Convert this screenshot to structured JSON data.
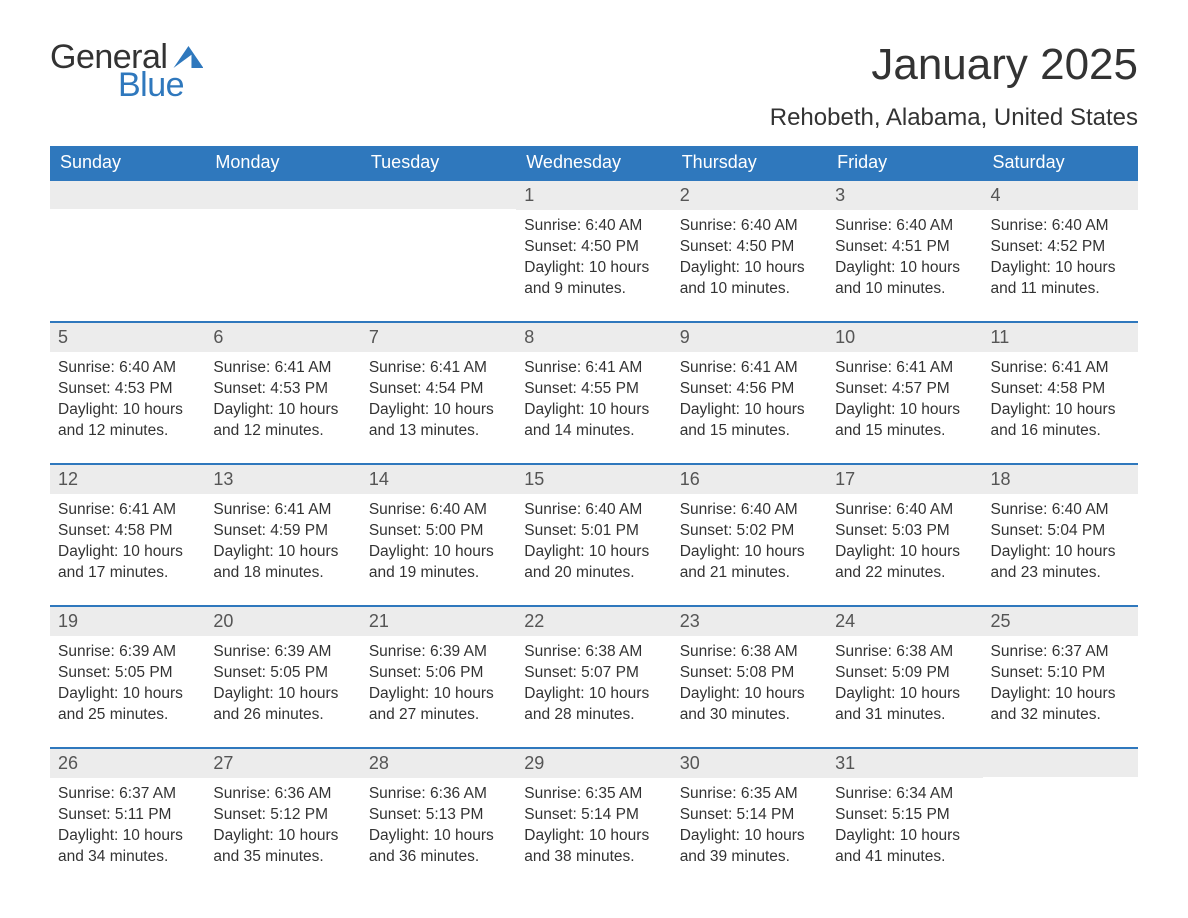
{
  "brand": {
    "text1": "General",
    "text2": "Blue",
    "accent_color": "#2f78bd"
  },
  "header": {
    "title": "January 2025",
    "location": "Rehobeth, Alabama, United States"
  },
  "calendar": {
    "header_bg": "#2f78bd",
    "header_fg": "#ffffff",
    "row_border": "#2f78bd",
    "daynum_bg": "#ececec",
    "text_color": "#333333",
    "background_color": "#ffffff",
    "day_names": [
      "Sunday",
      "Monday",
      "Tuesday",
      "Wednesday",
      "Thursday",
      "Friday",
      "Saturday"
    ],
    "weeks": [
      [
        {
          "empty": true
        },
        {
          "empty": true
        },
        {
          "empty": true
        },
        {
          "n": "1",
          "sunrise": "Sunrise: 6:40 AM",
          "sunset": "Sunset: 4:50 PM",
          "d1": "Daylight: 10 hours",
          "d2": "and 9 minutes."
        },
        {
          "n": "2",
          "sunrise": "Sunrise: 6:40 AM",
          "sunset": "Sunset: 4:50 PM",
          "d1": "Daylight: 10 hours",
          "d2": "and 10 minutes."
        },
        {
          "n": "3",
          "sunrise": "Sunrise: 6:40 AM",
          "sunset": "Sunset: 4:51 PM",
          "d1": "Daylight: 10 hours",
          "d2": "and 10 minutes."
        },
        {
          "n": "4",
          "sunrise": "Sunrise: 6:40 AM",
          "sunset": "Sunset: 4:52 PM",
          "d1": "Daylight: 10 hours",
          "d2": "and 11 minutes."
        }
      ],
      [
        {
          "n": "5",
          "sunrise": "Sunrise: 6:40 AM",
          "sunset": "Sunset: 4:53 PM",
          "d1": "Daylight: 10 hours",
          "d2": "and 12 minutes."
        },
        {
          "n": "6",
          "sunrise": "Sunrise: 6:41 AM",
          "sunset": "Sunset: 4:53 PM",
          "d1": "Daylight: 10 hours",
          "d2": "and 12 minutes."
        },
        {
          "n": "7",
          "sunrise": "Sunrise: 6:41 AM",
          "sunset": "Sunset: 4:54 PM",
          "d1": "Daylight: 10 hours",
          "d2": "and 13 minutes."
        },
        {
          "n": "8",
          "sunrise": "Sunrise: 6:41 AM",
          "sunset": "Sunset: 4:55 PM",
          "d1": "Daylight: 10 hours",
          "d2": "and 14 minutes."
        },
        {
          "n": "9",
          "sunrise": "Sunrise: 6:41 AM",
          "sunset": "Sunset: 4:56 PM",
          "d1": "Daylight: 10 hours",
          "d2": "and 15 minutes."
        },
        {
          "n": "10",
          "sunrise": "Sunrise: 6:41 AM",
          "sunset": "Sunset: 4:57 PM",
          "d1": "Daylight: 10 hours",
          "d2": "and 15 minutes."
        },
        {
          "n": "11",
          "sunrise": "Sunrise: 6:41 AM",
          "sunset": "Sunset: 4:58 PM",
          "d1": "Daylight: 10 hours",
          "d2": "and 16 minutes."
        }
      ],
      [
        {
          "n": "12",
          "sunrise": "Sunrise: 6:41 AM",
          "sunset": "Sunset: 4:58 PM",
          "d1": "Daylight: 10 hours",
          "d2": "and 17 minutes."
        },
        {
          "n": "13",
          "sunrise": "Sunrise: 6:41 AM",
          "sunset": "Sunset: 4:59 PM",
          "d1": "Daylight: 10 hours",
          "d2": "and 18 minutes."
        },
        {
          "n": "14",
          "sunrise": "Sunrise: 6:40 AM",
          "sunset": "Sunset: 5:00 PM",
          "d1": "Daylight: 10 hours",
          "d2": "and 19 minutes."
        },
        {
          "n": "15",
          "sunrise": "Sunrise: 6:40 AM",
          "sunset": "Sunset: 5:01 PM",
          "d1": "Daylight: 10 hours",
          "d2": "and 20 minutes."
        },
        {
          "n": "16",
          "sunrise": "Sunrise: 6:40 AM",
          "sunset": "Sunset: 5:02 PM",
          "d1": "Daylight: 10 hours",
          "d2": "and 21 minutes."
        },
        {
          "n": "17",
          "sunrise": "Sunrise: 6:40 AM",
          "sunset": "Sunset: 5:03 PM",
          "d1": "Daylight: 10 hours",
          "d2": "and 22 minutes."
        },
        {
          "n": "18",
          "sunrise": "Sunrise: 6:40 AM",
          "sunset": "Sunset: 5:04 PM",
          "d1": "Daylight: 10 hours",
          "d2": "and 23 minutes."
        }
      ],
      [
        {
          "n": "19",
          "sunrise": "Sunrise: 6:39 AM",
          "sunset": "Sunset: 5:05 PM",
          "d1": "Daylight: 10 hours",
          "d2": "and 25 minutes."
        },
        {
          "n": "20",
          "sunrise": "Sunrise: 6:39 AM",
          "sunset": "Sunset: 5:05 PM",
          "d1": "Daylight: 10 hours",
          "d2": "and 26 minutes."
        },
        {
          "n": "21",
          "sunrise": "Sunrise: 6:39 AM",
          "sunset": "Sunset: 5:06 PM",
          "d1": "Daylight: 10 hours",
          "d2": "and 27 minutes."
        },
        {
          "n": "22",
          "sunrise": "Sunrise: 6:38 AM",
          "sunset": "Sunset: 5:07 PM",
          "d1": "Daylight: 10 hours",
          "d2": "and 28 minutes."
        },
        {
          "n": "23",
          "sunrise": "Sunrise: 6:38 AM",
          "sunset": "Sunset: 5:08 PM",
          "d1": "Daylight: 10 hours",
          "d2": "and 30 minutes."
        },
        {
          "n": "24",
          "sunrise": "Sunrise: 6:38 AM",
          "sunset": "Sunset: 5:09 PM",
          "d1": "Daylight: 10 hours",
          "d2": "and 31 minutes."
        },
        {
          "n": "25",
          "sunrise": "Sunrise: 6:37 AM",
          "sunset": "Sunset: 5:10 PM",
          "d1": "Daylight: 10 hours",
          "d2": "and 32 minutes."
        }
      ],
      [
        {
          "n": "26",
          "sunrise": "Sunrise: 6:37 AM",
          "sunset": "Sunset: 5:11 PM",
          "d1": "Daylight: 10 hours",
          "d2": "and 34 minutes."
        },
        {
          "n": "27",
          "sunrise": "Sunrise: 6:36 AM",
          "sunset": "Sunset: 5:12 PM",
          "d1": "Daylight: 10 hours",
          "d2": "and 35 minutes."
        },
        {
          "n": "28",
          "sunrise": "Sunrise: 6:36 AM",
          "sunset": "Sunset: 5:13 PM",
          "d1": "Daylight: 10 hours",
          "d2": "and 36 minutes."
        },
        {
          "n": "29",
          "sunrise": "Sunrise: 6:35 AM",
          "sunset": "Sunset: 5:14 PM",
          "d1": "Daylight: 10 hours",
          "d2": "and 38 minutes."
        },
        {
          "n": "30",
          "sunrise": "Sunrise: 6:35 AM",
          "sunset": "Sunset: 5:14 PM",
          "d1": "Daylight: 10 hours",
          "d2": "and 39 minutes."
        },
        {
          "n": "31",
          "sunrise": "Sunrise: 6:34 AM",
          "sunset": "Sunset: 5:15 PM",
          "d1": "Daylight: 10 hours",
          "d2": "and 41 minutes."
        },
        {
          "empty": true
        }
      ]
    ]
  }
}
